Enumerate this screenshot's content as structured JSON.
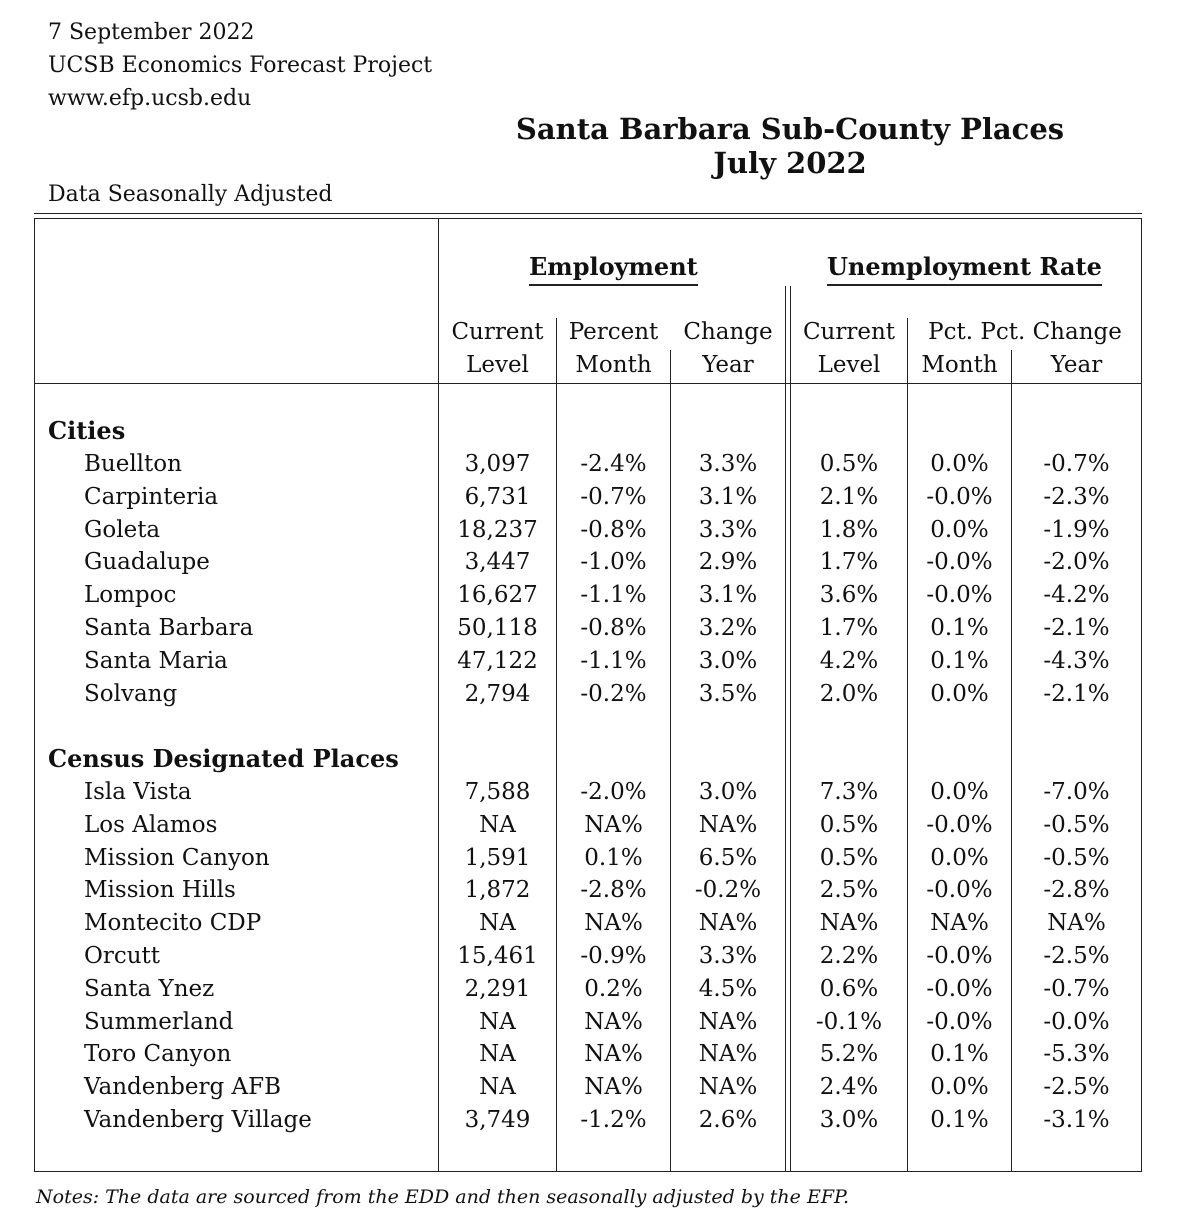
{
  "header": {
    "date": "7 September 2022",
    "org": "UCSB Economics Forecast Project",
    "url": "www.efp.ucsb.edu"
  },
  "title": {
    "line1": "Santa Barbara Sub-County Places",
    "line2": "July 2022"
  },
  "adjustment_note": "Data Seasonally Adjusted",
  "groups": {
    "employment": "Employment",
    "unemployment": "Unemployment Rate"
  },
  "columns": {
    "emp_current": [
      "Current",
      "Level"
    ],
    "emp_pct_month": [
      "Percent",
      "Month"
    ],
    "emp_change_year": [
      "Change",
      "Year"
    ],
    "ur_current": [
      "Current",
      "Level"
    ],
    "ur_pct_top": "Pct. Pct. Change",
    "ur_month": "Month",
    "ur_year": "Year"
  },
  "sections": [
    {
      "title": "Cities",
      "rows": [
        {
          "name": "Buellton",
          "emp_level": "3,097",
          "emp_month": "-2.4%",
          "emp_year": "3.3%",
          "ur_level": "0.5%",
          "ur_month": "0.0%",
          "ur_year": "-0.7%"
        },
        {
          "name": "Carpinteria",
          "emp_level": "6,731",
          "emp_month": "-0.7%",
          "emp_year": "3.1%",
          "ur_level": "2.1%",
          "ur_month": "-0.0%",
          "ur_year": "-2.3%"
        },
        {
          "name": "Goleta",
          "emp_level": "18,237",
          "emp_month": "-0.8%",
          "emp_year": "3.3%",
          "ur_level": "1.8%",
          "ur_month": "0.0%",
          "ur_year": "-1.9%"
        },
        {
          "name": "Guadalupe",
          "emp_level": "3,447",
          "emp_month": "-1.0%",
          "emp_year": "2.9%",
          "ur_level": "1.7%",
          "ur_month": "-0.0%",
          "ur_year": "-2.0%"
        },
        {
          "name": "Lompoc",
          "emp_level": "16,627",
          "emp_month": "-1.1%",
          "emp_year": "3.1%",
          "ur_level": "3.6%",
          "ur_month": "-0.0%",
          "ur_year": "-4.2%"
        },
        {
          "name": "Santa Barbara",
          "emp_level": "50,118",
          "emp_month": "-0.8%",
          "emp_year": "3.2%",
          "ur_level": "1.7%",
          "ur_month": "0.1%",
          "ur_year": "-2.1%"
        },
        {
          "name": "Santa Maria",
          "emp_level": "47,122",
          "emp_month": "-1.1%",
          "emp_year": "3.0%",
          "ur_level": "4.2%",
          "ur_month": "0.1%",
          "ur_year": "-4.3%"
        },
        {
          "name": "Solvang",
          "emp_level": "2,794",
          "emp_month": "-0.2%",
          "emp_year": "3.5%",
          "ur_level": "2.0%",
          "ur_month": "0.0%",
          "ur_year": "-2.1%"
        }
      ]
    },
    {
      "title": "Census Designated Places",
      "rows": [
        {
          "name": "Isla Vista",
          "emp_level": "7,588",
          "emp_month": "-2.0%",
          "emp_year": "3.0%",
          "ur_level": "7.3%",
          "ur_month": "0.0%",
          "ur_year": "-7.0%"
        },
        {
          "name": "Los Alamos",
          "emp_level": "NA",
          "emp_month": "NA%",
          "emp_year": "NA%",
          "ur_level": "0.5%",
          "ur_month": "-0.0%",
          "ur_year": "-0.5%"
        },
        {
          "name": "Mission Canyon",
          "emp_level": "1,591",
          "emp_month": "0.1%",
          "emp_year": "6.5%",
          "ur_level": "0.5%",
          "ur_month": "0.0%",
          "ur_year": "-0.5%"
        },
        {
          "name": "Mission Hills",
          "emp_level": "1,872",
          "emp_month": "-2.8%",
          "emp_year": "-0.2%",
          "ur_level": "2.5%",
          "ur_month": "-0.0%",
          "ur_year": "-2.8%"
        },
        {
          "name": "Montecito CDP",
          "emp_level": "NA",
          "emp_month": "NA%",
          "emp_year": "NA%",
          "ur_level": "NA%",
          "ur_month": "NA%",
          "ur_year": "NA%"
        },
        {
          "name": "Orcutt",
          "emp_level": "15,461",
          "emp_month": "-0.9%",
          "emp_year": "3.3%",
          "ur_level": "2.2%",
          "ur_month": "-0.0%",
          "ur_year": "-2.5%"
        },
        {
          "name": "Santa Ynez",
          "emp_level": "2,291",
          "emp_month": "0.2%",
          "emp_year": "4.5%",
          "ur_level": "0.6%",
          "ur_month": "-0.0%",
          "ur_year": "-0.7%"
        },
        {
          "name": "Summerland",
          "emp_level": "NA",
          "emp_month": "NA%",
          "emp_year": "NA%",
          "ur_level": "-0.1%",
          "ur_month": "-0.0%",
          "ur_year": "-0.0%"
        },
        {
          "name": "Toro Canyon",
          "emp_level": "NA",
          "emp_month": "NA%",
          "emp_year": "NA%",
          "ur_level": "5.2%",
          "ur_month": "0.1%",
          "ur_year": "-5.3%"
        },
        {
          "name": "Vandenberg AFB",
          "emp_level": "NA",
          "emp_month": "NA%",
          "emp_year": "NA%",
          "ur_level": "2.4%",
          "ur_month": "0.0%",
          "ur_year": "-2.5%"
        },
        {
          "name": "Vandenberg Village",
          "emp_level": "3,749",
          "emp_month": "-1.2%",
          "emp_year": "2.6%",
          "ur_level": "3.0%",
          "ur_month": "0.1%",
          "ur_year": "-3.1%"
        }
      ]
    }
  ],
  "notes": "Notes: The data are sourced from the EDD and then seasonally adjusted by the EFP."
}
